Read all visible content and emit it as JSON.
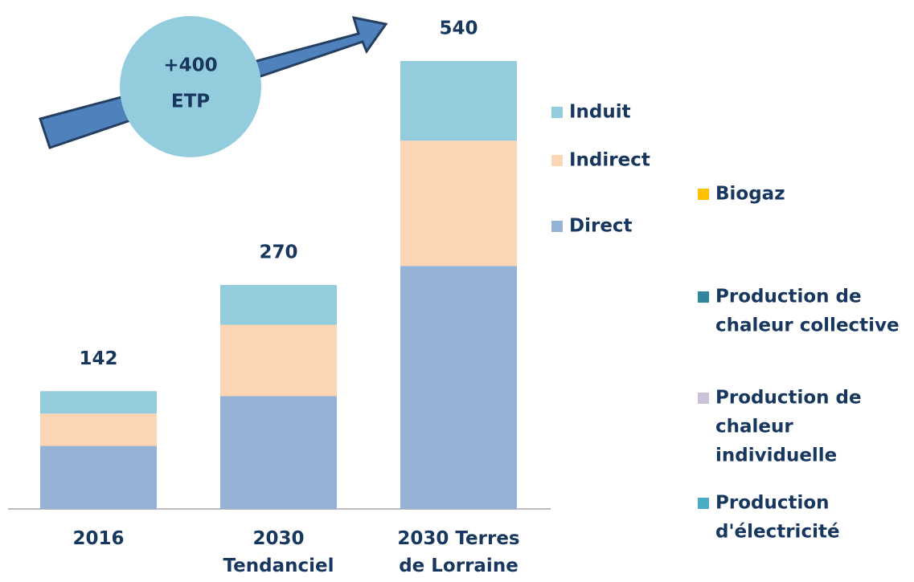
{
  "chart_data": {
    "type": "bar",
    "stacked": true,
    "categories": [
      "2016",
      "2030 Tendanciel",
      "2030 Terres de Lorraine"
    ],
    "series": [
      {
        "name": "Direct",
        "color": "#95b3d7",
        "values": [
          76,
          136,
          293
        ]
      },
      {
        "name": "Indirect",
        "color": "#fcd5b5",
        "values": [
          39,
          86,
          151
        ]
      },
      {
        "name": "Induit",
        "color": "#93cddd",
        "values": [
          27,
          48,
          96
        ]
      }
    ],
    "totals": [
      142,
      270,
      540
    ],
    "annotation": [
      "+400",
      "ETP"
    ],
    "extra_legend": [
      {
        "lines": [
          "Biogaz"
        ],
        "color": "#ffc000"
      },
      {
        "lines": [
          "Production de",
          "chaleur collective"
        ],
        "color": "#31859c"
      },
      {
        "lines": [
          "Production de",
          "chaleur",
          "individuelle"
        ],
        "color": "#ccc1da"
      },
      {
        "lines": [
          "Production",
          "d'électricité"
        ],
        "color": "#4bacc6"
      }
    ]
  }
}
